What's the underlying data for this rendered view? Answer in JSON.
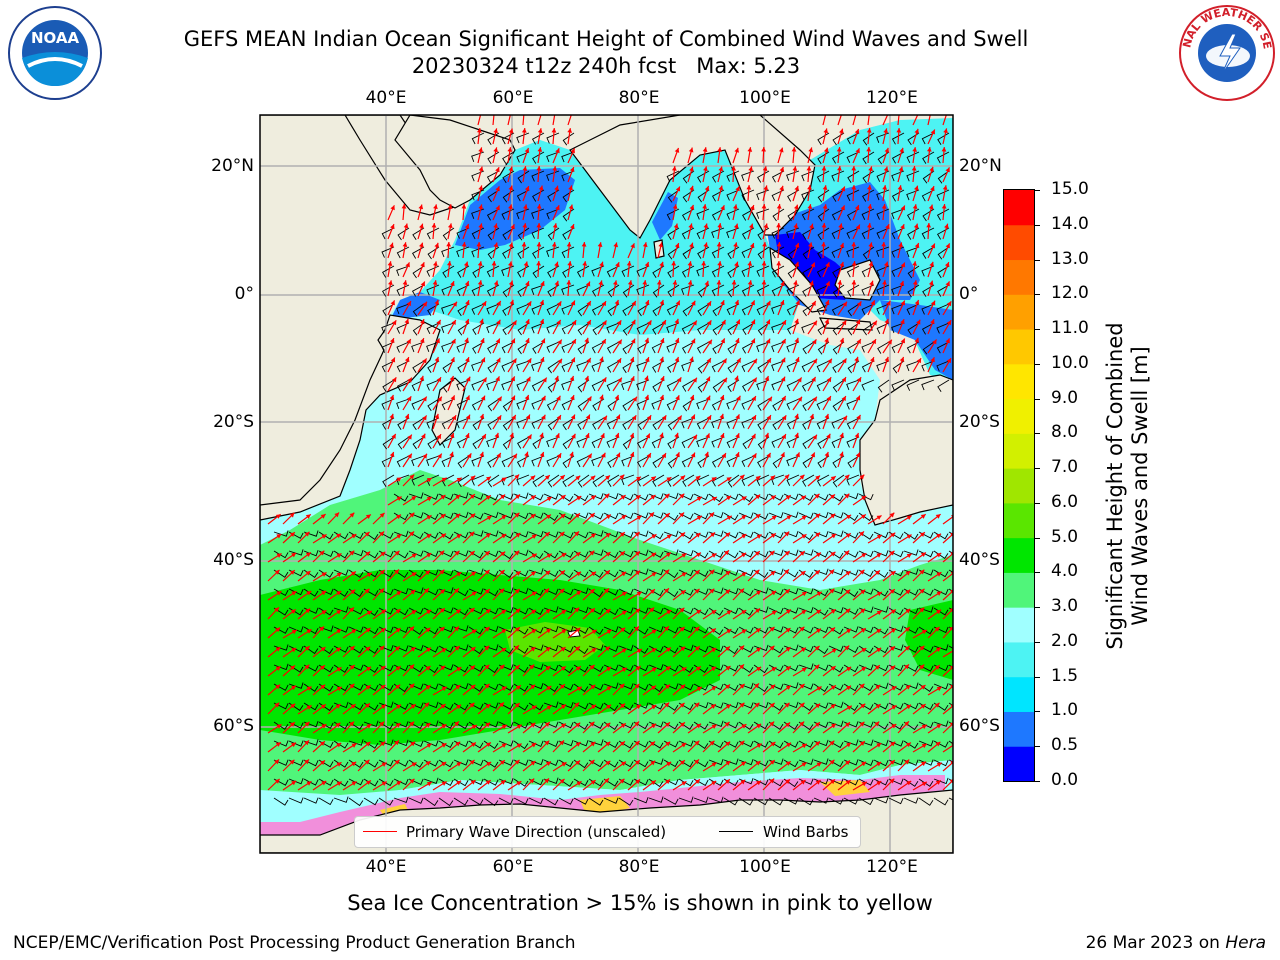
{
  "header": {
    "title_line1": "GEFS MEAN Indian Ocean Significant Height of Combined Wind Waves and Swell",
    "title_line2": "20230324 t12z 240h fcst   Max: 5.23"
  },
  "logos": {
    "left": {
      "name": "noaa-logo",
      "text": "NOAA"
    },
    "right": {
      "name": "nws-logo",
      "text": "NATIONAL WEATHER SERVICE"
    }
  },
  "map": {
    "lon_ticks_top": [
      "40°E",
      "60°E",
      "80°E",
      "100°E",
      "120°E"
    ],
    "lon_ticks_bottom": [
      "40°E",
      "60°E",
      "80°E",
      "100°E",
      "120°E"
    ],
    "lat_ticks_left": [
      "20°N",
      "0°",
      "20°S",
      "40°S",
      "60°S"
    ],
    "lat_ticks_right": [
      "20°N",
      "0°",
      "20°S",
      "40°S",
      "60°S"
    ],
    "lon_values": [
      40,
      60,
      80,
      100,
      120
    ],
    "lat_values": [
      20,
      0,
      -20,
      -40,
      -60
    ],
    "extent": {
      "lon": [
        20,
        130
      ],
      "lat": [
        -70,
        28
      ]
    },
    "colors": {
      "land": "#efedde",
      "grid": "#b0b0b0",
      "arrows": "#ff0000",
      "barbs": "#000000"
    }
  },
  "legend": {
    "wave_direction": "Primary Wave Direction (unscaled)",
    "wind_barbs": "Wind Barbs"
  },
  "colorbar": {
    "title_line1": "Significant Height of Combined",
    "title_line2": "Wind Waves and Swell [m]",
    "ticks": [
      "0.0",
      "0.5",
      "1.0",
      "1.5",
      "2.0",
      "3.0",
      "4.0",
      "5.0",
      "6.0",
      "7.0",
      "8.0",
      "9.0",
      "10.0",
      "11.0",
      "12.0",
      "13.0",
      "14.0",
      "15.0"
    ],
    "colors": [
      "#0000ff",
      "#1e78ff",
      "#00e5ff",
      "#4df3f3",
      "#a0ffff",
      "#50f57a",
      "#00e600",
      "#5ae600",
      "#a0e600",
      "#d2f000",
      "#f0f000",
      "#ffe600",
      "#ffc800",
      "#ffa000",
      "#ff7800",
      "#ff4b00",
      "#ff0000"
    ]
  },
  "caption": "Sea Ice Concentration > 15% is shown in pink to yellow",
  "footer": {
    "left": "NCEP/EMC/Verification Post Processing Product Generation Branch",
    "right_date": "26 Mar 2023 on",
    "right_host": "Hera"
  }
}
